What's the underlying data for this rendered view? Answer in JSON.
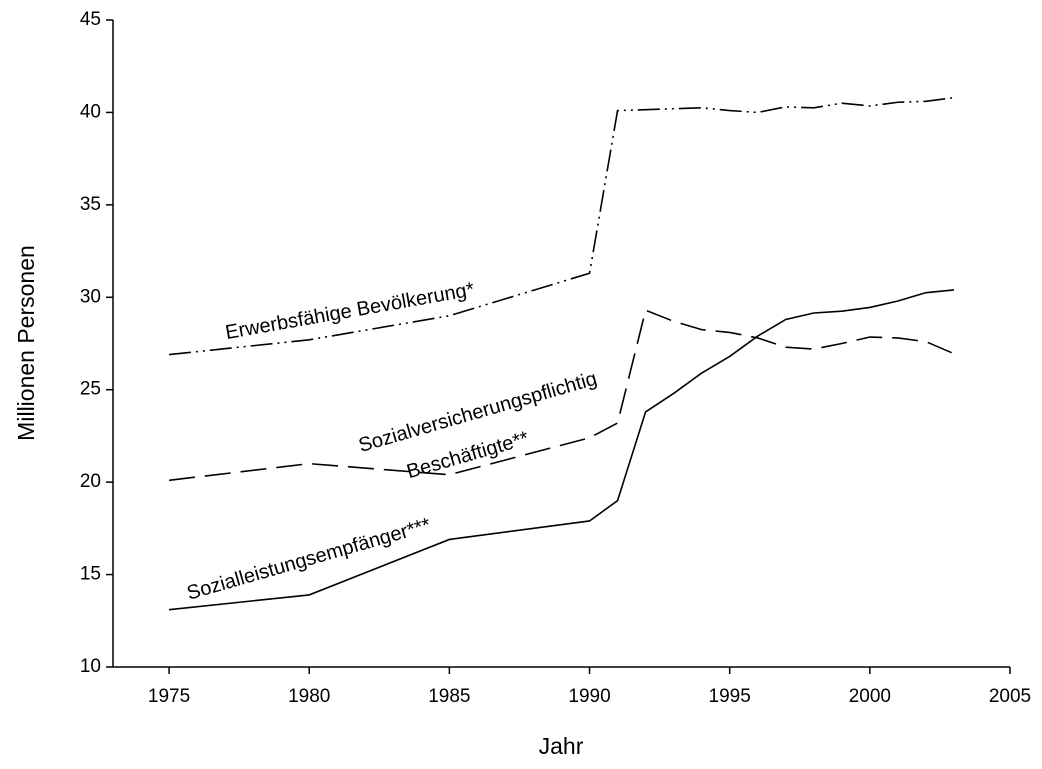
{
  "chart_data": {
    "type": "line",
    "x_label": "Jahr",
    "y_label": "Millionen Personen",
    "x": [
      1975,
      1980,
      1985,
      1990,
      1991,
      1992,
      1993,
      1994,
      1995,
      1996,
      1997,
      1998,
      1999,
      2000,
      2001,
      2002,
      2003
    ],
    "series": [
      {
        "color": "#000000",
        "style": "dash-dot-dot",
        "values": [
          26.9,
          27.7,
          29.0,
          31.3,
          40.1,
          40.15,
          40.2,
          40.25,
          40.1,
          40.0,
          40.3,
          40.25,
          40.5,
          40.35,
          40.55,
          40.6,
          40.8
        ]
      },
      {
        "color": "#000000",
        "style": "long-dash",
        "values": [
          20.1,
          21.0,
          20.4,
          22.4,
          23.2,
          29.3,
          28.7,
          28.25,
          28.1,
          27.8,
          27.3,
          27.2,
          27.5,
          27.85,
          27.8,
          27.6,
          26.95
        ]
      },
      {
        "color": "#000000",
        "style": "solid",
        "values": [
          13.1,
          13.9,
          16.9,
          17.9,
          19.0,
          23.8,
          24.8,
          25.9,
          26.8,
          27.9,
          28.8,
          29.15,
          29.25,
          29.45,
          29.8,
          30.25,
          30.4
        ]
      }
    ],
    "annotations": [
      "Erwerbsfähige Bevölkerung*",
      "Sozialversicherungspflichtig",
      "Beschäftigte**",
      "Sozialleistungsempfänger***"
    ],
    "xlim": [
      1973,
      2005
    ],
    "xticks": [
      1975,
      1980,
      1985,
      1990,
      1995,
      2000,
      2005
    ],
    "ylim": [
      10,
      45
    ],
    "yticks": [
      10,
      15,
      20,
      25,
      30,
      35,
      40,
      45
    ],
    "grid": false
  }
}
